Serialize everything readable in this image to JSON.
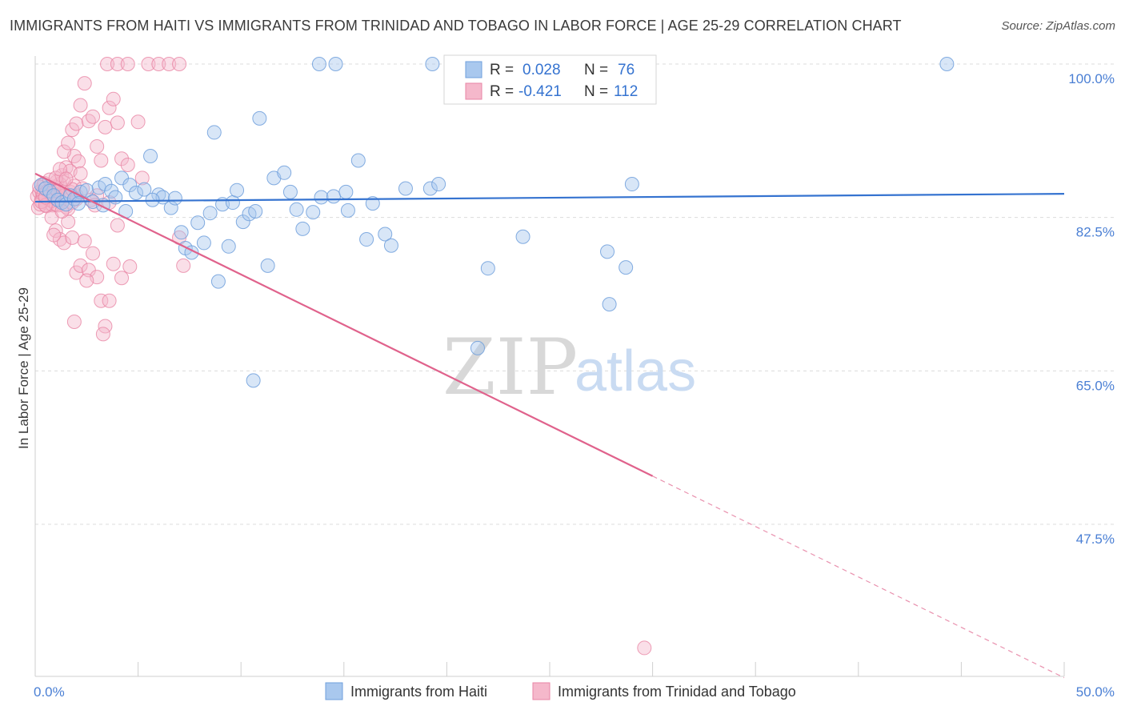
{
  "header": {
    "title": "IMMIGRANTS FROM HAITI VS IMMIGRANTS FROM TRINIDAD AND TOBAGO IN LABOR FORCE | AGE 25-29 CORRELATION CHART",
    "source": "Source: ZipAtlas.com"
  },
  "watermark": {
    "zip": "ZIP",
    "atlas": "atlas"
  },
  "legend": {
    "r_label": "R =",
    "n_label": "N =",
    "rows": [
      {
        "r": "0.028",
        "n": "76",
        "color": "#a9c8ee"
      },
      {
        "r": "-0.421",
        "n": "112",
        "color": "#f5b8cb"
      }
    ]
  },
  "bottom_legend": [
    {
      "label": "Immigrants from Haiti",
      "color": "#a9c8ee"
    },
    {
      "label": "Immigrants from Trinidad and Tobago",
      "color": "#f5b8cb"
    }
  ],
  "chart_data": {
    "type": "scatter",
    "title": "IMMIGRANTS FROM HAITI VS IMMIGRANTS FROM TRINIDAD AND TOBAGO IN LABOR FORCE | AGE 25-29 CORRELATION CHART",
    "xlabel": "",
    "ylabel": "In Labor Force | Age 25-29",
    "xlim": [
      0,
      50
    ],
    "ylim": [
      30,
      101
    ],
    "x_tick_labels": [
      "0.0%",
      "50.0%"
    ],
    "y_ticks": [
      47.5,
      65.0,
      82.5,
      100.0
    ],
    "y_tick_labels": [
      "47.5%",
      "65.0%",
      "82.5%",
      "100.0%"
    ],
    "grid": "horizontal dashed",
    "legend_position": "top-center",
    "series": [
      {
        "name": "Immigrants from Haiti",
        "color": "#a9c8ee",
        "stroke": "#6f9fdc",
        "trend": {
          "x": [
            0,
            50
          ],
          "y": [
            84.3,
            85.2
          ],
          "color": "#3573d0"
        },
        "points": [
          [
            0.3,
            86.2
          ],
          [
            0.5,
            85.8
          ],
          [
            0.7,
            85.5
          ],
          [
            0.9,
            85.0
          ],
          [
            1.1,
            84.5
          ],
          [
            1.3,
            84.2
          ],
          [
            1.5,
            84.0
          ],
          [
            1.7,
            85.0
          ],
          [
            1.9,
            84.6
          ],
          [
            2.2,
            85.4
          ],
          [
            2.5,
            85.6
          ],
          [
            2.8,
            84.3
          ],
          [
            3.1,
            85.9
          ],
          [
            3.4,
            86.3
          ],
          [
            3.7,
            85.5
          ],
          [
            3.9,
            84.8
          ],
          [
            4.2,
            87.0
          ],
          [
            4.6,
            86.2
          ],
          [
            4.9,
            85.3
          ],
          [
            5.3,
            85.7
          ],
          [
            5.6,
            89.5
          ],
          [
            6.0,
            85.1
          ],
          [
            6.2,
            84.8
          ],
          [
            6.6,
            83.6
          ],
          [
            7.1,
            80.8
          ],
          [
            7.3,
            79.0
          ],
          [
            7.6,
            78.5
          ],
          [
            7.9,
            81.9
          ],
          [
            8.2,
            79.6
          ],
          [
            8.5,
            83.0
          ],
          [
            8.7,
            92.2
          ],
          [
            8.9,
            75.2
          ],
          [
            9.1,
            84.0
          ],
          [
            9.4,
            79.2
          ],
          [
            9.6,
            84.2
          ],
          [
            9.8,
            85.6
          ],
          [
            10.1,
            82.0
          ],
          [
            10.4,
            82.9
          ],
          [
            10.7,
            83.2
          ],
          [
            10.9,
            93.8
          ],
          [
            11.3,
            77.0
          ],
          [
            11.6,
            87.0
          ],
          [
            12.1,
            87.6
          ],
          [
            12.4,
            85.4
          ],
          [
            12.7,
            83.4
          ],
          [
            13.0,
            81.2
          ],
          [
            13.5,
            83.1
          ],
          [
            13.9,
            84.8
          ],
          [
            14.5,
            84.9
          ],
          [
            15.1,
            85.4
          ],
          [
            15.2,
            83.3
          ],
          [
            16.4,
            84.1
          ],
          [
            16.1,
            80.0
          ],
          [
            15.7,
            89.0
          ],
          [
            17.0,
            80.6
          ],
          [
            17.3,
            79.3
          ],
          [
            18.0,
            85.8
          ],
          [
            19.2,
            85.8
          ],
          [
            19.3,
            100.0
          ],
          [
            19.6,
            86.3
          ],
          [
            21.5,
            67.6
          ],
          [
            22.0,
            76.7
          ],
          [
            23.7,
            80.3
          ],
          [
            27.8,
            78.6
          ],
          [
            27.9,
            72.6
          ],
          [
            28.7,
            76.8
          ],
          [
            29.0,
            86.3
          ],
          [
            44.3,
            100.0
          ],
          [
            13.8,
            100.0
          ],
          [
            14.6,
            100.0
          ],
          [
            3.3,
            83.9
          ],
          [
            4.4,
            83.2
          ],
          [
            5.7,
            84.5
          ],
          [
            6.8,
            84.7
          ],
          [
            2.1,
            84.1
          ],
          [
            10.6,
            63.9
          ]
        ]
      },
      {
        "name": "Immigrants from Trinidad and Tobago",
        "color": "#f5b8cb",
        "stroke": "#e885a4",
        "trend": {
          "x": [
            0,
            30
          ],
          "y": [
            87.5,
            53.0
          ],
          "dash_x": [
            30,
            50
          ],
          "dash_y": [
            53.0,
            30.0
          ],
          "color": "#e0628c"
        },
        "points": [
          [
            0.1,
            84.9
          ],
          [
            0.2,
            85.4
          ],
          [
            0.3,
            84.5
          ],
          [
            0.4,
            86.2
          ],
          [
            0.5,
            85.0
          ],
          [
            0.6,
            84.1
          ],
          [
            0.7,
            85.7
          ],
          [
            0.8,
            84.7
          ],
          [
            0.9,
            86.0
          ],
          [
            1.0,
            85.2
          ],
          [
            1.1,
            83.9
          ],
          [
            1.2,
            84.3
          ],
          [
            1.3,
            85.8
          ],
          [
            1.4,
            86.5
          ],
          [
            1.5,
            83.7
          ],
          [
            1.6,
            84.9
          ],
          [
            1.7,
            85.4
          ],
          [
            1.8,
            84.2
          ],
          [
            1.9,
            86.1
          ],
          [
            2.0,
            85.0
          ],
          [
            0.15,
            83.6
          ],
          [
            0.25,
            84.0
          ],
          [
            0.35,
            85.3
          ],
          [
            0.45,
            86.4
          ],
          [
            0.55,
            83.8
          ],
          [
            0.65,
            84.6
          ],
          [
            0.75,
            85.6
          ],
          [
            0.85,
            83.9
          ],
          [
            0.95,
            85.1
          ],
          [
            1.05,
            86.6
          ],
          [
            0.2,
            86.0
          ],
          [
            0.4,
            85.1
          ],
          [
            0.6,
            85.5
          ],
          [
            0.8,
            84.4
          ],
          [
            1.0,
            84.0
          ],
          [
            1.2,
            86.3
          ],
          [
            1.4,
            85.0
          ],
          [
            1.6,
            83.5
          ],
          [
            1.8,
            85.7
          ],
          [
            2.0,
            84.6
          ],
          [
            0.3,
            84.3
          ],
          [
            0.5,
            83.9
          ],
          [
            0.7,
            86.8
          ],
          [
            0.9,
            84.8
          ],
          [
            1.1,
            85.5
          ],
          [
            1.3,
            87.3
          ],
          [
            1.5,
            88.2
          ],
          [
            1.7,
            87.8
          ],
          [
            1.9,
            89.5
          ],
          [
            2.1,
            88.9
          ],
          [
            1.0,
            87.0
          ],
          [
            1.2,
            88.0
          ],
          [
            1.4,
            90.0
          ],
          [
            1.6,
            91.0
          ],
          [
            1.8,
            92.5
          ],
          [
            2.0,
            93.2
          ],
          [
            2.2,
            95.3
          ],
          [
            2.4,
            97.8
          ],
          [
            2.6,
            93.5
          ],
          [
            2.8,
            94.0
          ],
          [
            3.0,
            90.6
          ],
          [
            3.2,
            89.0
          ],
          [
            3.4,
            92.8
          ],
          [
            3.6,
            95.0
          ],
          [
            3.8,
            96.0
          ],
          [
            4.0,
            93.3
          ],
          [
            4.2,
            89.2
          ],
          [
            4.5,
            88.5
          ],
          [
            5.0,
            93.4
          ],
          [
            5.2,
            87.0
          ],
          [
            0.8,
            82.5
          ],
          [
            1.0,
            81.0
          ],
          [
            1.2,
            80.0
          ],
          [
            1.4,
            79.6
          ],
          [
            1.6,
            82.0
          ],
          [
            1.8,
            80.2
          ],
          [
            2.0,
            76.2
          ],
          [
            2.2,
            77.0
          ],
          [
            2.4,
            79.8
          ],
          [
            2.6,
            76.5
          ],
          [
            2.8,
            78.4
          ],
          [
            3.0,
            75.7
          ],
          [
            3.2,
            73.0
          ],
          [
            3.4,
            70.1
          ],
          [
            3.6,
            73.0
          ],
          [
            3.8,
            77.2
          ],
          [
            4.0,
            81.6
          ],
          [
            4.2,
            75.6
          ],
          [
            4.6,
            76.9
          ],
          [
            0.9,
            80.5
          ],
          [
            2.5,
            75.3
          ],
          [
            1.9,
            70.6
          ],
          [
            3.3,
            69.2
          ],
          [
            7.0,
            80.2
          ],
          [
            7.2,
            77.0
          ],
          [
            3.5,
            100.0
          ],
          [
            4.0,
            100.0
          ],
          [
            4.5,
            100.0
          ],
          [
            5.5,
            100.0
          ],
          [
            6.0,
            100.0
          ],
          [
            6.5,
            100.0
          ],
          [
            7.0,
            100.0
          ],
          [
            3.0,
            85.0
          ],
          [
            3.6,
            84.2
          ],
          [
            2.3,
            85.8
          ],
          [
            2.7,
            84.5
          ],
          [
            1.5,
            86.9
          ],
          [
            2.2,
            87.5
          ],
          [
            1.3,
            83.2
          ],
          [
            2.9,
            83.9
          ],
          [
            29.6,
            33.4
          ],
          [
            0.5,
            84.8
          ]
        ]
      }
    ]
  }
}
